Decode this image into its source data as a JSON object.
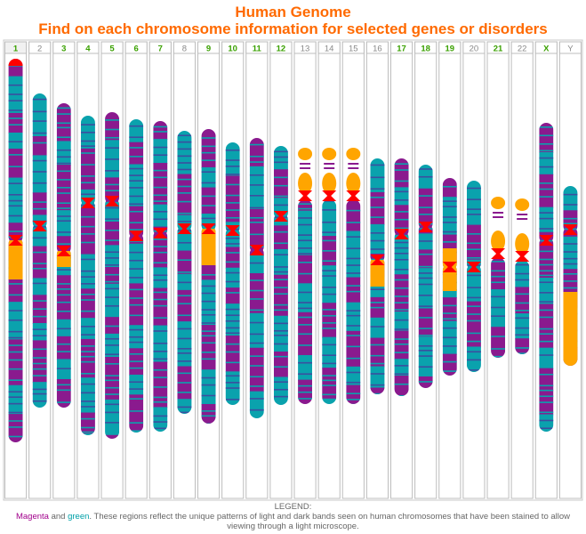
{
  "header": {
    "title": "Human Genome",
    "subtitle": "Find on each chromosome information for selected genes or disorders"
  },
  "legend": {
    "heading": "LEGEND:",
    "magenta_word": "Magenta",
    "and_word": " and ",
    "green_word": "green",
    "description": ". These regions reflect the unique patterns of light and dark bands seen on human chromosomes that have been stained to allow viewing through a light microscope."
  },
  "colors": {
    "magenta": "#8a1a8e",
    "teal": "#0aa2ad",
    "band": "#3b4fa0",
    "orange": "#ffa500",
    "centromere": "#ff0000",
    "label_green": "#3aa000",
    "label_gray": "#888888",
    "title": "#ff6a00"
  },
  "chromosomes": [
    {
      "label": "1",
      "highlight": true,
      "selected": true,
      "top": 66,
      "bottom": 497,
      "cen": 270,
      "orangeEnd": 314,
      "stalk": false,
      "qorange": false
    },
    {
      "label": "2",
      "highlight": false,
      "selected": false,
      "top": 105,
      "bottom": 458,
      "cen": 254,
      "stalk": false,
      "qorange": false
    },
    {
      "label": "3",
      "highlight": true,
      "selected": false,
      "top": 116,
      "bottom": 458,
      "cen": 282,
      "orangeEnd": 300,
      "stalk": false,
      "qorange": false
    },
    {
      "label": "4",
      "highlight": true,
      "selected": false,
      "top": 130,
      "bottom": 489,
      "cen": 228,
      "stalk": false,
      "qorange": false
    },
    {
      "label": "5",
      "highlight": true,
      "selected": false,
      "top": 126,
      "bottom": 493,
      "cen": 226,
      "stalk": false,
      "qorange": false
    },
    {
      "label": "6",
      "highlight": true,
      "selected": false,
      "top": 134,
      "bottom": 486,
      "cen": 265,
      "stalk": false,
      "qorange": false
    },
    {
      "label": "7",
      "highlight": true,
      "selected": false,
      "top": 136,
      "bottom": 485,
      "cen": 262,
      "stalk": false,
      "qorange": false
    },
    {
      "label": "8",
      "highlight": false,
      "selected": false,
      "top": 147,
      "bottom": 465,
      "cen": 257,
      "stalk": false,
      "qorange": false
    },
    {
      "label": "9",
      "highlight": true,
      "selected": false,
      "top": 145,
      "bottom": 476,
      "cen": 257,
      "orangeEnd": 298,
      "stalk": false,
      "qorange": false
    },
    {
      "label": "10",
      "highlight": true,
      "selected": false,
      "top": 160,
      "bottom": 455,
      "cen": 259,
      "stalk": false,
      "qorange": false
    },
    {
      "label": "11",
      "highlight": true,
      "selected": false,
      "top": 155,
      "bottom": 470,
      "cen": 281,
      "stalk": false,
      "qorange": false
    },
    {
      "label": "12",
      "highlight": true,
      "selected": false,
      "top": 164,
      "bottom": 455,
      "cen": 243,
      "stalk": false,
      "qorange": false
    },
    {
      "label": "13",
      "highlight": false,
      "selected": false,
      "top": 166,
      "bottom": 454,
      "cen": 220,
      "stalk": true,
      "qorange": false
    },
    {
      "label": "14",
      "highlight": false,
      "selected": false,
      "top": 166,
      "bottom": 454,
      "cen": 220,
      "stalk": true,
      "qorange": false
    },
    {
      "label": "15",
      "highlight": false,
      "selected": false,
      "top": 166,
      "bottom": 454,
      "cen": 220,
      "stalk": true,
      "qorange": false
    },
    {
      "label": "16",
      "highlight": false,
      "selected": false,
      "top": 178,
      "bottom": 443,
      "cen": 292,
      "orangeEnd": 322,
      "stalk": false,
      "qorange": false
    },
    {
      "label": "17",
      "highlight": true,
      "selected": false,
      "top": 178,
      "bottom": 445,
      "cen": 263,
      "stalk": false,
      "qorange": false
    },
    {
      "label": "18",
      "highlight": true,
      "selected": false,
      "top": 185,
      "bottom": 436,
      "cen": 255,
      "stalk": false,
      "qorange": false
    },
    {
      "label": "19",
      "highlight": true,
      "selected": false,
      "top": 200,
      "bottom": 422,
      "cen": 300,
      "orangeEnd": 327,
      "orangeStart": 279,
      "stalk": false,
      "qorange": false
    },
    {
      "label": "20",
      "highlight": false,
      "selected": false,
      "top": 203,
      "bottom": 418,
      "cen": 300,
      "stalk": false,
      "qorange": false
    },
    {
      "label": "21",
      "highlight": true,
      "selected": false,
      "top": 221,
      "bottom": 402,
      "cen": 285,
      "stalk": true,
      "qorange": false
    },
    {
      "label": "22",
      "highlight": false,
      "selected": false,
      "top": 223,
      "bottom": 398,
      "cen": 288,
      "stalk": true,
      "qorange": false
    },
    {
      "label": "X",
      "highlight": true,
      "selected": false,
      "top": 138,
      "bottom": 485,
      "cen": 270,
      "stalk": false,
      "qorange": false
    },
    {
      "label": "Y",
      "highlight": false,
      "selected": false,
      "top": 209,
      "bottom": 411,
      "cen": 258,
      "stalk": false,
      "qorange": true
    }
  ]
}
